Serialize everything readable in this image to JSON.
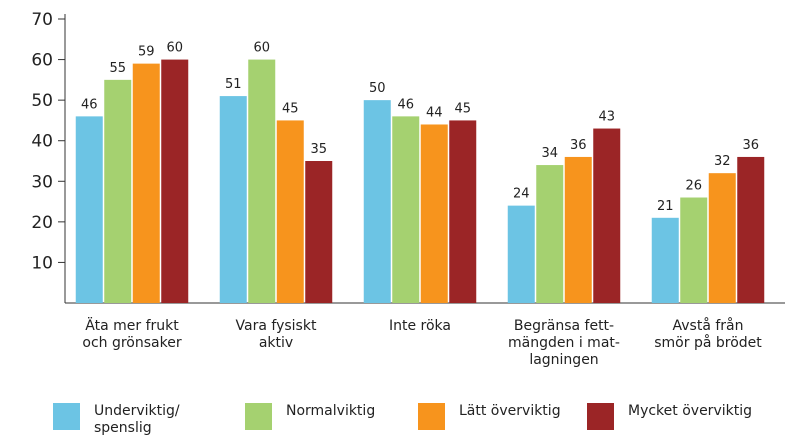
{
  "chart_data": {
    "type": "bar",
    "categories": [
      [
        "Äta mer frukt",
        "och grönsaker"
      ],
      [
        "Vara fysiskt",
        "aktiv"
      ],
      [
        "Inte röka"
      ],
      [
        "Begränsa fett-",
        "mängden i mat-",
        "lagningen"
      ],
      [
        "Avstå från",
        "smör på brödet"
      ]
    ],
    "series": [
      {
        "name": "Underviktig/ spenslig",
        "color": "#6cc4e4",
        "values": [
          46,
          51,
          50,
          24,
          21
        ]
      },
      {
        "name": "Normalviktig",
        "color": "#a5d170",
        "values": [
          55,
          60,
          46,
          34,
          26
        ]
      },
      {
        "name": "Lätt överviktig",
        "color": "#f7941d",
        "values": [
          59,
          45,
          44,
          36,
          32
        ]
      },
      {
        "name": "Mycket överviktig",
        "color": "#9b2526",
        "values": [
          60,
          35,
          45,
          43,
          36
        ]
      }
    ],
    "ylim": [
      0,
      70
    ],
    "yticks": [
      10,
      20,
      30,
      40,
      50,
      60,
      70
    ],
    "legend": "bottom"
  }
}
